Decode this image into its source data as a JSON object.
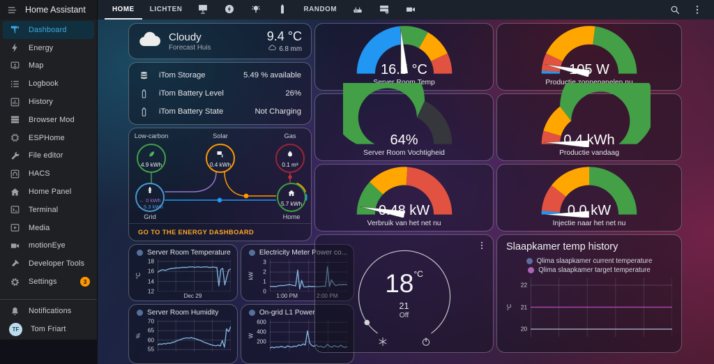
{
  "app": {
    "title": "Home Assistant"
  },
  "sidebar": {
    "items": [
      {
        "label": "Dashboard",
        "icon": "dashboard-icon",
        "active": true
      },
      {
        "label": "Energy",
        "icon": "lightning-bolt-icon"
      },
      {
        "label": "Map",
        "icon": "tooltip-account-icon"
      },
      {
        "label": "Logbook",
        "icon": "list-icon"
      },
      {
        "label": "History",
        "icon": "chart-box-icon"
      },
      {
        "label": "Browser Mod",
        "icon": "server-stack-icon"
      },
      {
        "label": "ESPHome",
        "icon": "chip-icon"
      },
      {
        "label": "File editor",
        "icon": "wrench-icon"
      },
      {
        "label": "HACS",
        "icon": "hacs-box-icon"
      },
      {
        "label": "Home Panel",
        "icon": "house-icon"
      },
      {
        "label": "Terminal",
        "icon": "terminal-icon"
      },
      {
        "label": "Media",
        "icon": "play-box-icon"
      },
      {
        "label": "motionEye",
        "icon": "camera-icon"
      },
      {
        "label": "Developer Tools",
        "icon": "hammer-icon"
      },
      {
        "label": "Settings",
        "icon": "gear-icon",
        "badge": "3"
      }
    ],
    "notifications_label": "Notifications",
    "user": {
      "name": "Tom Friart",
      "initials": "TF"
    }
  },
  "topnav": {
    "tabs": [
      {
        "label": "HOME",
        "active": true
      },
      {
        "label": "LICHTEN"
      },
      {
        "icon": "solar-panel-icon"
      },
      {
        "icon": "flash-circle-icon"
      },
      {
        "icon": "light-group-icon"
      },
      {
        "icon": "battery-icon"
      },
      {
        "label": "RANDOM"
      },
      {
        "icon": "router-icon"
      },
      {
        "icon": "server-gear-icon"
      },
      {
        "icon": "camera-icon"
      }
    ],
    "right_icons": [
      "search-icon",
      "dots-vertical-icon"
    ]
  },
  "weather": {
    "condition": "Cloudy",
    "subtitle": "Forecast Huis",
    "temperature": "9.4 °C",
    "precipitation": "6.8 mm",
    "icon": "cloudy-icon"
  },
  "entities": {
    "rows": [
      {
        "icon": "database-icon",
        "name": "iTom Storage",
        "value": "5.49 % available"
      },
      {
        "icon": "battery-icon",
        "name": "iTom Battery Level",
        "value": "26%"
      },
      {
        "icon": "battery-icon",
        "name": "iTom Battery State",
        "value": "Not Charging"
      }
    ]
  },
  "energy": {
    "low_carbon": {
      "label": "Low-carbon",
      "value": "4.9 kWh",
      "icon": "leaf-icon",
      "color": "#43a047"
    },
    "solar": {
      "label": "Solar",
      "value": "0.4 kWh",
      "icon": "solar-power-icon",
      "color": "#ff9800"
    },
    "gas": {
      "label": "Gas",
      "value": "0.1 m³",
      "icon": "fire-icon",
      "color": "#9e2433"
    },
    "grid": {
      "label": "Grid",
      "in": "← 0 kWh",
      "out": "→ 5.3 kWh",
      "icon": "transmission-tower-icon",
      "color": "#4a98d0",
      "in_color": "#9575cd",
      "out_color": "#4aa3df"
    },
    "home": {
      "label": "Home",
      "value": "5.7 kWh",
      "icon": "home-icon",
      "color": "#3ba23f"
    },
    "link_label": "GO TO THE ENERGY DASHBOARD",
    "link_color": "#ffa726"
  },
  "gauges": [
    {
      "value": "16.5 °C",
      "label": "Server Room Temp",
      "needle": 0.475,
      "segments": [
        {
          "to": 0.47,
          "color": "#2196f3"
        },
        {
          "to": 0.665,
          "color": "#43a047"
        },
        {
          "to": 0.86,
          "color": "#ffa600"
        },
        {
          "to": 1,
          "color": "#e25241"
        }
      ]
    },
    {
      "value": "105 W",
      "label": "Productie zonnepanelen nu",
      "needle": 0.065,
      "segments": [
        {
          "to": 0.02,
          "color": "#2196f3"
        },
        {
          "to": 0.14,
          "color": "#e25241"
        },
        {
          "to": 0.54,
          "color": "#ffa600"
        },
        {
          "to": 1,
          "color": "#43a047"
        }
      ]
    },
    {
      "value": "64%",
      "label": "Server Room Vochtigheid",
      "needle": null,
      "segments": [
        {
          "to": 0.64,
          "color": "#43a047"
        },
        {
          "to": 1,
          "color": "#36363d"
        }
      ]
    },
    {
      "value": "0.4 kWh",
      "label": "Productie vandaag",
      "needle": 0.012,
      "segments": [
        {
          "to": 0.09,
          "color": "#e25241"
        },
        {
          "to": 0.29,
          "color": "#ffa600"
        },
        {
          "to": 1,
          "color": "#43a047"
        }
      ]
    },
    {
      "value": "0.48 kW",
      "label": "Verbruik van het net nu",
      "needle": 0.055,
      "segments": [
        {
          "to": 0.24,
          "color": "#43a047"
        },
        {
          "to": 0.52,
          "color": "#ffa600"
        },
        {
          "to": 1,
          "color": "#e25241"
        }
      ]
    },
    {
      "value": "0.0 kW",
      "label": "Injectie naar het net nu",
      "needle": 0.0,
      "segments": [
        {
          "to": 0.025,
          "color": "#2196f3"
        },
        {
          "to": 0.21,
          "color": "#e25241"
        },
        {
          "to": 0.5,
          "color": "#ffa600"
        },
        {
          "to": 1,
          "color": "#43a047"
        }
      ]
    }
  ],
  "thermostat": {
    "current": "18",
    "unit": "°C",
    "target": "21",
    "state": "Off",
    "modes": [
      "snowflake-icon",
      "power-icon"
    ]
  },
  "history": {
    "title": "Slaapkamer temp history",
    "legend": [
      {
        "label": "Qlima slaapkamer current temperature",
        "color": "#5f6d9e"
      },
      {
        "label": "Qlima slaapkamer target temperature",
        "color": "#a966b5"
      }
    ],
    "unit": "°C"
  },
  "chart_data": [
    {
      "id": "server_room_temperature",
      "type": "line",
      "title": "Server Room Temperature",
      "ylabel": "°C",
      "yticks": [
        18,
        16,
        14,
        12
      ],
      "ylim": [
        12,
        18.4
      ],
      "xticks": [
        "Dec 29"
      ],
      "color": "#7fb2d9",
      "values": [
        15.8,
        16.1,
        16.3,
        16.3,
        16.2,
        16.4,
        16.5,
        16.6,
        16.6,
        16.7,
        16.7,
        16.7,
        16.8,
        16.8,
        16.8,
        16.8,
        16.9,
        16.9,
        16.9,
        16.8,
        16.9,
        16.9,
        16.8,
        16.9,
        16.9,
        16.9,
        16.8,
        16.8,
        16.9,
        16.8,
        16.8,
        13.1,
        16.4,
        16.6,
        13.3,
        14.8,
        16.3,
        16.5
      ]
    },
    {
      "id": "electricity_meter_power",
      "type": "line",
      "title": "Electricity Meter Power co...",
      "ylabel": "kW",
      "yticks": [
        3,
        2,
        1,
        0
      ],
      "ylim": [
        0,
        3.3
      ],
      "xticks": [
        "1:00 PM",
        "2:00 PM"
      ],
      "color": "#7fb2d9",
      "values": [
        0.55,
        0.5,
        0.53,
        0.5,
        0.56,
        0.6,
        0.62,
        0.6,
        0.64,
        0.68,
        0.7,
        0.66,
        0.62,
        0.58,
        2.2,
        0.25,
        1.15,
        0.5,
        0.45,
        0.5,
        0.54,
        0.5,
        0.52,
        0.5,
        0.48,
        0.5,
        0.53,
        0.55,
        0.52,
        2.55,
        0.5,
        1.2,
        0.85,
        0.6,
        0.66,
        0.7,
        0.68,
        0.72,
        0.7,
        0.68
      ]
    },
    {
      "id": "server_room_humidity",
      "type": "line",
      "title": "Server Room Humidity",
      "ylabel": "%",
      "yticks": [
        70,
        65,
        60,
        55
      ],
      "ylim": [
        54,
        71
      ],
      "xticks": [],
      "color": "#7fb2d9",
      "values": [
        57.5,
        58,
        57.8,
        58.2,
        58,
        58.5,
        58.2,
        58.8,
        59,
        59.5,
        60,
        60.3,
        60.8,
        61,
        61.2,
        61,
        61.3,
        61,
        60.8,
        60.4,
        60,
        59.6,
        59,
        58.6,
        58.2,
        57.8,
        57.4,
        57.2,
        57,
        57.4,
        56.8,
        59.8,
        56.2,
        66,
        64.5,
        67.2
      ]
    },
    {
      "id": "ongrid_l1_power",
      "type": "line",
      "title": "On-grid L1 Power",
      "ylabel": "W",
      "yticks": [
        600,
        400,
        200
      ],
      "ylim": [
        0,
        660
      ],
      "xticks": [],
      "color": "#7fb2d9",
      "values": [
        70,
        90,
        75,
        95,
        85,
        105,
        90,
        80,
        115,
        95,
        90,
        110,
        100,
        135,
        120,
        155,
        130,
        425,
        170,
        120,
        105,
        135,
        95,
        110,
        85,
        95,
        145,
        105,
        85,
        120,
        100,
        90,
        130,
        95,
        85,
        100
      ]
    },
    {
      "id": "slaapkamer_temp_history",
      "type": "line",
      "title": "Slaapkamer temp history",
      "ylabel": "°C",
      "yticks": [
        22,
        21,
        20
      ],
      "ylim": [
        19.65,
        22.35
      ],
      "xticks": [],
      "series": [
        {
          "name": "Qlima slaapkamer current temperature",
          "color": "#9aa3b8",
          "values": [
            20,
            20
          ]
        },
        {
          "name": "Qlima slaapkamer target temperature",
          "color": "#a545a8",
          "values": [
            21,
            21
          ]
        }
      ]
    }
  ]
}
